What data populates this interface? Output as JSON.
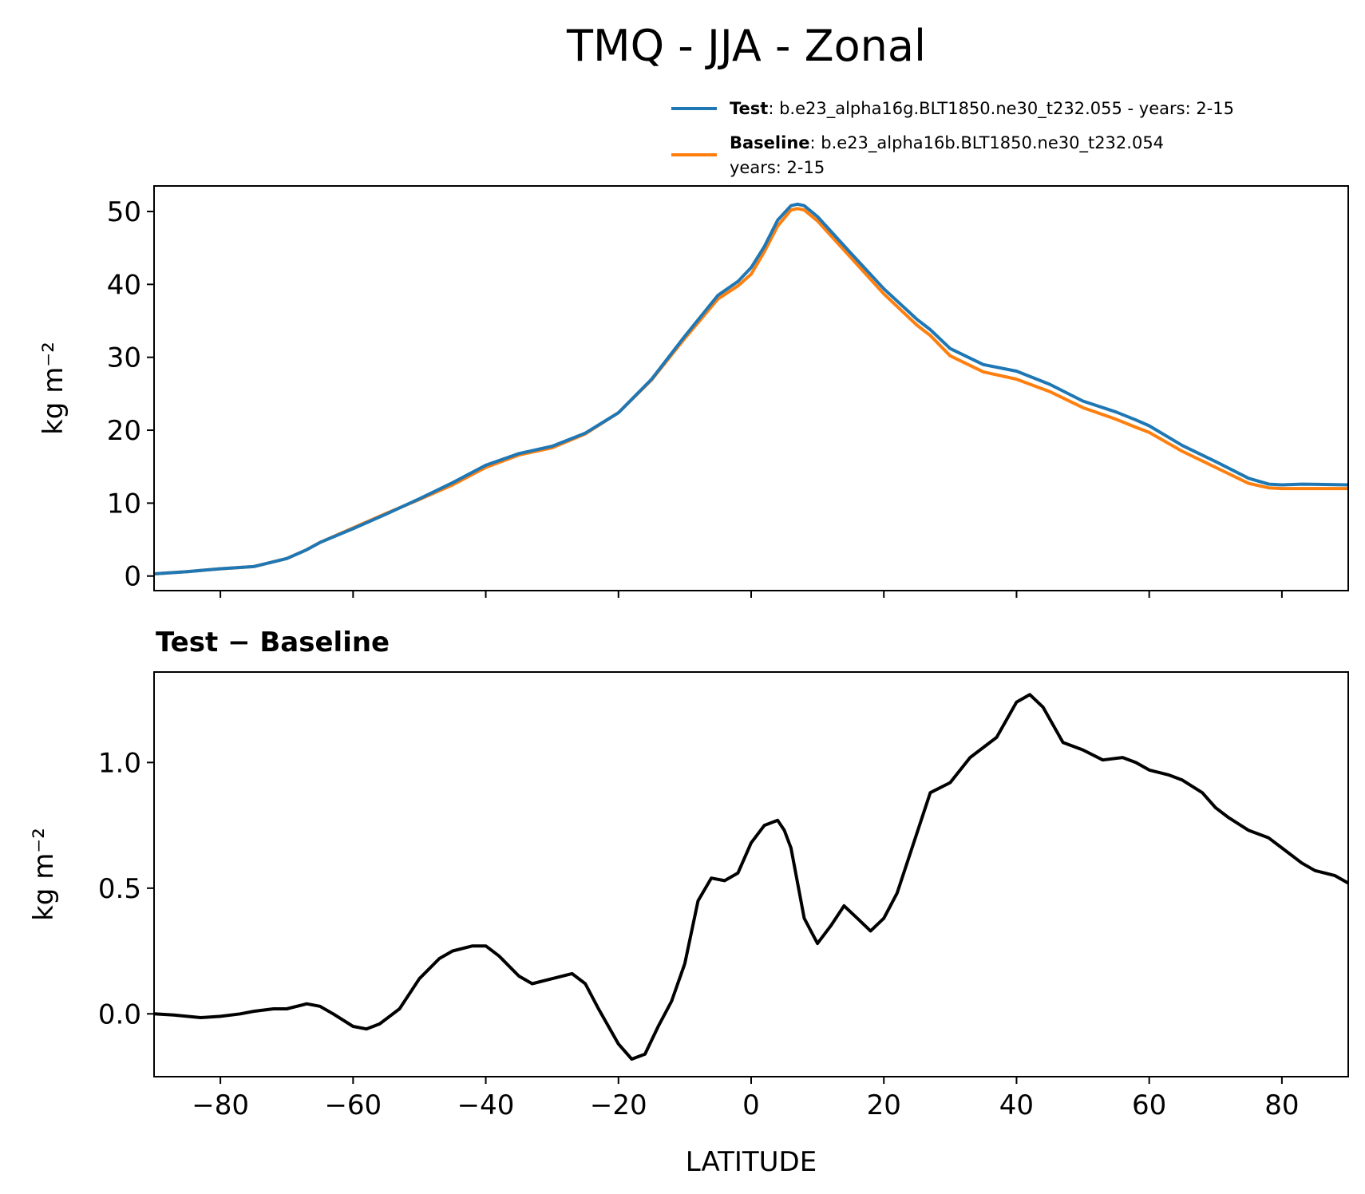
{
  "title": "TMQ - JJA - Zonal",
  "legend": {
    "test_name": "Test",
    "test_desc": ": b.e23_alpha16g.BLT1850.ne30_t232.055 - years: 2-15",
    "base_name": "Baseline",
    "base_desc": ": b.e23_alpha16b.BLT1850.ne30_t232.054",
    "base_years": "years: 2-15"
  },
  "colors": {
    "test": "#1f77b4",
    "baseline": "#ff7f0e",
    "diff": "#000000"
  },
  "chart_data": [
    {
      "type": "line",
      "title": "",
      "xlabel": "",
      "ylabel": "kg m⁻²",
      "xlim": [
        -90,
        90
      ],
      "ylim": [
        -2,
        53.5
      ],
      "xticks": [
        -80,
        -60,
        -40,
        -20,
        0,
        20,
        40,
        60,
        80
      ],
      "yticks": [
        0,
        10,
        20,
        30,
        40,
        50
      ],
      "ytick_labels": [
        "0",
        "10",
        "20",
        "30",
        "40",
        "50"
      ],
      "x": [
        -90,
        -85,
        -80,
        -75,
        -70,
        -67,
        -65,
        -60,
        -55,
        -50,
        -45,
        -40,
        -35,
        -30,
        -25,
        -20,
        -15,
        -10,
        -5,
        -2,
        0,
        2,
        4,
        6,
        7,
        8,
        10,
        15,
        20,
        25,
        27,
        30,
        35,
        40,
        45,
        50,
        55,
        58,
        60,
        65,
        70,
        75,
        78,
        80,
        83,
        90
      ],
      "series": [
        {
          "name": "Test",
          "values": [
            0.3,
            0.6,
            1.0,
            1.3,
            2.4,
            3.6,
            4.6,
            6.5,
            8.5,
            10.6,
            12.8,
            15.2,
            16.8,
            17.8,
            19.6,
            22.4,
            27.0,
            32.9,
            38.5,
            40.4,
            42.3,
            45.2,
            48.8,
            50.8,
            51.0,
            50.8,
            49.3,
            44.3,
            39.4,
            35.2,
            33.8,
            31.2,
            29.0,
            28.1,
            26.3,
            24.0,
            22.5,
            21.4,
            20.6,
            17.9,
            15.7,
            13.4,
            12.6,
            12.5,
            12.6,
            12.5
          ]
        },
        {
          "name": "Baseline",
          "values": [
            0.3,
            0.6,
            1.0,
            1.3,
            2.4,
            3.6,
            4.6,
            6.6,
            8.6,
            10.5,
            12.5,
            14.9,
            16.6,
            17.6,
            19.5,
            22.4,
            26.9,
            32.6,
            38.0,
            39.8,
            41.4,
            44.5,
            48.0,
            50.2,
            50.4,
            50.2,
            48.7,
            43.7,
            38.7,
            34.4,
            33.0,
            30.2,
            28.0,
            27.0,
            25.3,
            23.1,
            21.5,
            20.4,
            19.7,
            17.1,
            14.9,
            12.7,
            12.1,
            12.0,
            12.0,
            12.0
          ]
        }
      ]
    },
    {
      "type": "line",
      "title": "Test − Baseline",
      "xlabel": "LATITUDE",
      "ylabel": "kg m⁻²",
      "xlim": [
        -90,
        90
      ],
      "ylim": [
        -0.25,
        1.36
      ],
      "xticks": [
        -80,
        -60,
        -40,
        -20,
        0,
        20,
        40,
        60,
        80
      ],
      "xtick_labels": [
        "−80",
        "−60",
        "−40",
        "−20",
        "0",
        "20",
        "40",
        "60",
        "80"
      ],
      "yticks": [
        0.0,
        0.5,
        1.0
      ],
      "ytick_labels": [
        "0.0",
        "0.5",
        "1.0"
      ],
      "x": [
        -90,
        -87,
        -85,
        -83,
        -80,
        -77,
        -75,
        -72,
        -70,
        -67,
        -65,
        -63,
        -60,
        -58,
        -56,
        -53,
        -50,
        -47,
        -45,
        -42,
        -40,
        -38,
        -35,
        -33,
        -30,
        -27,
        -25,
        -23,
        -20,
        -18,
        -16,
        -14,
        -12,
        -10,
        -8,
        -6,
        -4,
        -2,
        0,
        2,
        4,
        5,
        6,
        8,
        10,
        12,
        14,
        16,
        18,
        20,
        22,
        25,
        27,
        30,
        33,
        35,
        37,
        40,
        42,
        44,
        47,
        50,
        53,
        56,
        58,
        60,
        63,
        65,
        68,
        70,
        72,
        75,
        78,
        80,
        83,
        85,
        88,
        90
      ],
      "series": [
        {
          "name": "Test − Baseline",
          "values": [
            0.0,
            -0.005,
            -0.01,
            -0.015,
            -0.01,
            0.0,
            0.01,
            0.02,
            0.02,
            0.04,
            0.03,
            0.0,
            -0.05,
            -0.06,
            -0.04,
            0.02,
            0.14,
            0.22,
            0.25,
            0.27,
            0.27,
            0.23,
            0.15,
            0.12,
            0.14,
            0.16,
            0.12,
            0.02,
            -0.12,
            -0.18,
            -0.16,
            -0.05,
            0.05,
            0.2,
            0.45,
            0.54,
            0.53,
            0.56,
            0.68,
            0.75,
            0.77,
            0.73,
            0.66,
            0.38,
            0.28,
            0.35,
            0.43,
            0.38,
            0.33,
            0.38,
            0.48,
            0.72,
            0.88,
            0.92,
            1.02,
            1.06,
            1.1,
            1.24,
            1.27,
            1.22,
            1.08,
            1.05,
            1.01,
            1.02,
            1.0,
            0.97,
            0.95,
            0.93,
            0.88,
            0.82,
            0.78,
            0.73,
            0.7,
            0.66,
            0.6,
            0.57,
            0.55,
            0.52
          ]
        }
      ]
    }
  ]
}
